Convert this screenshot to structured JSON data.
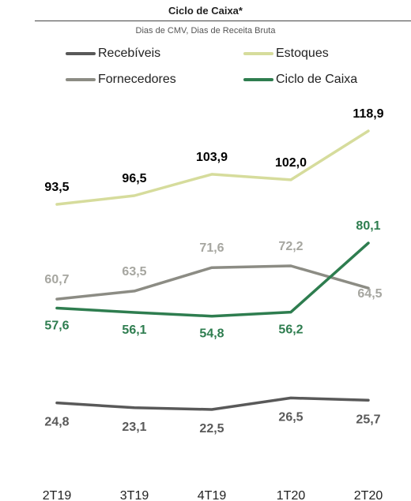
{
  "chart_data": {
    "type": "line",
    "title": "Ciclo de Caixa*",
    "subtitle": "Dias de CMV, Dias de Receita Bruta",
    "categories": [
      "2T19",
      "3T19",
      "4T19",
      "1T20",
      "2T20"
    ],
    "series": [
      {
        "name": "Recebíveis",
        "color": "#595959",
        "values": [
          24.8,
          23.1,
          22.5,
          26.5,
          25.7
        ]
      },
      {
        "name": "Estoques",
        "color": "#d6dc9c",
        "values": [
          93.5,
          96.5,
          103.9,
          102.0,
          118.9
        ]
      },
      {
        "name": "Fornecedores",
        "color": "#8c8c84",
        "values": [
          60.7,
          63.5,
          71.6,
          72.2,
          64.5
        ]
      },
      {
        "name": "Ciclo de Caixa",
        "color": "#2e7d4f",
        "values": [
          57.6,
          56.1,
          54.8,
          56.2,
          80.1
        ]
      }
    ],
    "label_colors": {
      "Recebíveis": "#595959",
      "Estoques": "#000000",
      "Fornecedores": "#a6a6a0",
      "Ciclo de Caixa": "#2e7d4f"
    },
    "legend_position": "top",
    "grid": false,
    "decimal_separator": ","
  }
}
